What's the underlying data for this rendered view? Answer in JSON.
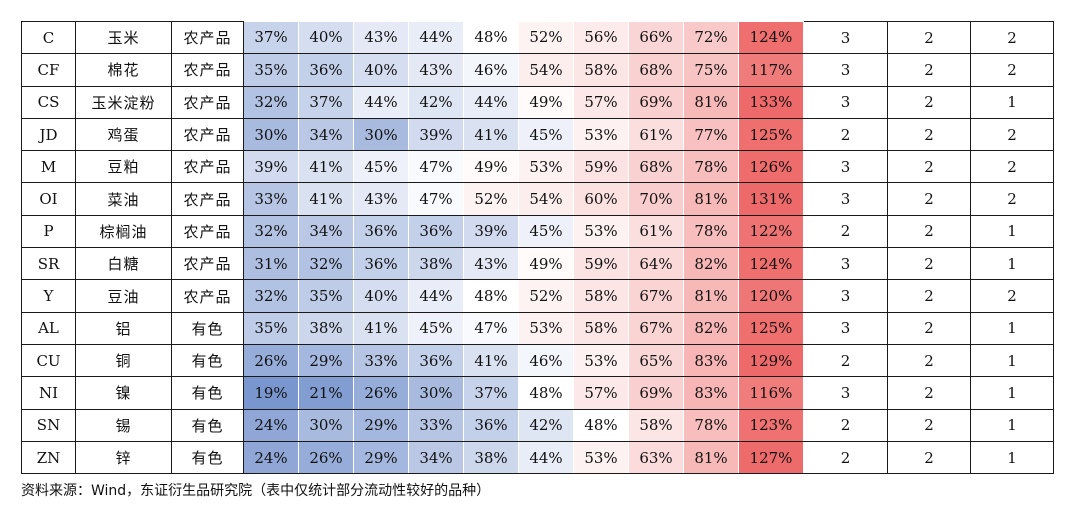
{
  "table": {
    "rows": [
      {
        "code": "C",
        "name": "玉米",
        "sector": "农产品",
        "pct": [
          "37%",
          "40%",
          "43%",
          "44%",
          "48%",
          "52%",
          "56%",
          "66%",
          "72%",
          "124%"
        ],
        "r1": "3",
        "r2": "2",
        "r3": "2"
      },
      {
        "code": "CF",
        "name": "棉花",
        "sector": "农产品",
        "pct": [
          "35%",
          "36%",
          "40%",
          "43%",
          "46%",
          "54%",
          "58%",
          "68%",
          "75%",
          "117%"
        ],
        "r1": "3",
        "r2": "2",
        "r3": "2"
      },
      {
        "code": "CS",
        "name": "玉米淀粉",
        "sector": "农产品",
        "pct": [
          "32%",
          "37%",
          "44%",
          "42%",
          "44%",
          "49%",
          "57%",
          "69%",
          "81%",
          "133%"
        ],
        "r1": "3",
        "r2": "2",
        "r3": "1"
      },
      {
        "code": "JD",
        "name": "鸡蛋",
        "sector": "农产品",
        "pct": [
          "30%",
          "34%",
          "30%",
          "39%",
          "41%",
          "45%",
          "53%",
          "61%",
          "77%",
          "125%"
        ],
        "r1": "2",
        "r2": "2",
        "r3": "2"
      },
      {
        "code": "M",
        "name": "豆粕",
        "sector": "农产品",
        "pct": [
          "39%",
          "41%",
          "45%",
          "47%",
          "49%",
          "53%",
          "59%",
          "68%",
          "78%",
          "126%"
        ],
        "r1": "3",
        "r2": "2",
        "r3": "2"
      },
      {
        "code": "OI",
        "name": "菜油",
        "sector": "农产品",
        "pct": [
          "33%",
          "41%",
          "43%",
          "47%",
          "52%",
          "54%",
          "60%",
          "70%",
          "81%",
          "131%"
        ],
        "r1": "3",
        "r2": "2",
        "r3": "2"
      },
      {
        "code": "P",
        "name": "棕榈油",
        "sector": "农产品",
        "pct": [
          "32%",
          "34%",
          "36%",
          "36%",
          "39%",
          "45%",
          "53%",
          "61%",
          "78%",
          "122%"
        ],
        "r1": "2",
        "r2": "2",
        "r3": "1"
      },
      {
        "code": "SR",
        "name": "白糖",
        "sector": "农产品",
        "pct": [
          "31%",
          "32%",
          "36%",
          "38%",
          "43%",
          "49%",
          "59%",
          "64%",
          "82%",
          "124%"
        ],
        "r1": "3",
        "r2": "2",
        "r3": "1"
      },
      {
        "code": "Y",
        "name": "豆油",
        "sector": "农产品",
        "pct": [
          "32%",
          "35%",
          "40%",
          "44%",
          "48%",
          "52%",
          "58%",
          "67%",
          "81%",
          "120%"
        ],
        "r1": "3",
        "r2": "2",
        "r3": "2"
      },
      {
        "code": "AL",
        "name": "铝",
        "sector": "有色",
        "pct": [
          "35%",
          "38%",
          "41%",
          "45%",
          "47%",
          "53%",
          "58%",
          "67%",
          "82%",
          "125%"
        ],
        "r1": "3",
        "r2": "2",
        "r3": "1"
      },
      {
        "code": "CU",
        "name": "铜",
        "sector": "有色",
        "pct": [
          "26%",
          "29%",
          "33%",
          "36%",
          "41%",
          "46%",
          "53%",
          "65%",
          "83%",
          "129%"
        ],
        "r1": "2",
        "r2": "2",
        "r3": "1"
      },
      {
        "code": "NI",
        "name": "镍",
        "sector": "有色",
        "pct": [
          "19%",
          "21%",
          "26%",
          "30%",
          "37%",
          "48%",
          "57%",
          "69%",
          "83%",
          "116%"
        ],
        "r1": "3",
        "r2": "2",
        "r3": "1"
      },
      {
        "code": "SN",
        "name": "锡",
        "sector": "有色",
        "pct": [
          "24%",
          "30%",
          "29%",
          "33%",
          "36%",
          "42%",
          "48%",
          "58%",
          "78%",
          "123%"
        ],
        "r1": "2",
        "r2": "2",
        "r3": "1"
      },
      {
        "code": "ZN",
        "name": "锌",
        "sector": "有色",
        "pct": [
          "24%",
          "26%",
          "29%",
          "34%",
          "38%",
          "44%",
          "53%",
          "63%",
          "81%",
          "127%"
        ],
        "r1": "2",
        "r2": "2",
        "r3": "1"
      }
    ]
  },
  "source_note": "资料来源：Wind，东证衍生品研究院（表中仅统计部分流动性较好的品种）"
}
